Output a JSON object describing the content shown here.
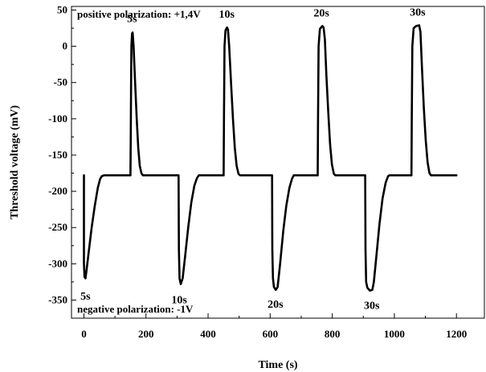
{
  "chart_data": {
    "type": "line",
    "xlabel": "Time (s)",
    "ylabel": "Threshold voltage (mV)",
    "xlim": [
      -40,
      1290
    ],
    "ylim": [
      -375,
      55
    ],
    "x_ticks": [
      0,
      200,
      400,
      600,
      800,
      1000,
      1200
    ],
    "y_ticks": [
      50,
      0,
      -50,
      -100,
      -150,
      -200,
      -250,
      -300,
      -350
    ],
    "grid": false,
    "line_color": "#000000",
    "annotations": {
      "positive": "positive polarization: +1,4V",
      "negative": "negative polarization: -1V"
    },
    "pulse_labels": [
      {
        "text": "5s",
        "x": 5,
        "y": -325,
        "position": "below"
      },
      {
        "text": "5s",
        "x": 155,
        "y": 20,
        "position": "above"
      },
      {
        "text": "10s",
        "x": 307,
        "y": -330,
        "position": "below"
      },
      {
        "text": "10s",
        "x": 460,
        "y": 26,
        "position": "above"
      },
      {
        "text": "20s",
        "x": 617,
        "y": -336,
        "position": "below"
      },
      {
        "text": "20s",
        "x": 765,
        "y": 28,
        "position": "above"
      },
      {
        "text": "30s",
        "x": 927,
        "y": -338,
        "position": "below"
      },
      {
        "text": "30s",
        "x": 1075,
        "y": 29,
        "position": "above"
      }
    ],
    "series": [
      {
        "points": [
          [
            0,
            -178
          ],
          [
            0,
            -300
          ],
          [
            2,
            -318
          ],
          [
            5,
            -320
          ],
          [
            8,
            -310
          ],
          [
            15,
            -285
          ],
          [
            25,
            -250
          ],
          [
            35,
            -220
          ],
          [
            45,
            -195
          ],
          [
            52,
            -183
          ],
          [
            58,
            -179
          ],
          [
            65,
            -178
          ],
          [
            150,
            -178
          ],
          [
            151,
            -120
          ],
          [
            152,
            -50
          ],
          [
            153,
            0
          ],
          [
            155,
            18
          ],
          [
            157,
            19
          ],
          [
            160,
            0
          ],
          [
            165,
            -50
          ],
          [
            170,
            -100
          ],
          [
            175,
            -140
          ],
          [
            180,
            -165
          ],
          [
            185,
            -175
          ],
          [
            190,
            -178
          ],
          [
            305,
            -178
          ],
          [
            306,
            -280
          ],
          [
            308,
            -320
          ],
          [
            312,
            -328
          ],
          [
            318,
            -320
          ],
          [
            326,
            -290
          ],
          [
            336,
            -250
          ],
          [
            346,
            -215
          ],
          [
            356,
            -192
          ],
          [
            364,
            -182
          ],
          [
            370,
            -178
          ],
          [
            450,
            -178
          ],
          [
            451,
            -100
          ],
          [
            453,
            0
          ],
          [
            456,
            22
          ],
          [
            461,
            26
          ],
          [
            464,
            23
          ],
          [
            468,
            0
          ],
          [
            474,
            -50
          ],
          [
            480,
            -100
          ],
          [
            486,
            -140
          ],
          [
            492,
            -165
          ],
          [
            498,
            -176
          ],
          [
            503,
            -178
          ],
          [
            606,
            -178
          ],
          [
            607,
            -280
          ],
          [
            609,
            -320
          ],
          [
            612,
            -332
          ],
          [
            618,
            -336
          ],
          [
            624,
            -332
          ],
          [
            632,
            -300
          ],
          [
            642,
            -255
          ],
          [
            652,
            -220
          ],
          [
            662,
            -195
          ],
          [
            670,
            -183
          ],
          [
            676,
            -178
          ],
          [
            753,
            -178
          ],
          [
            754,
            -100
          ],
          [
            756,
            0
          ],
          [
            760,
            24
          ],
          [
            768,
            28
          ],
          [
            772,
            26
          ],
          [
            776,
            10
          ],
          [
            781,
            -40
          ],
          [
            787,
            -90
          ],
          [
            793,
            -135
          ],
          [
            799,
            -163
          ],
          [
            805,
            -176
          ],
          [
            810,
            -178
          ],
          [
            906,
            -178
          ],
          [
            907,
            -280
          ],
          [
            909,
            -325
          ],
          [
            913,
            -333
          ],
          [
            921,
            -337
          ],
          [
            929,
            -336
          ],
          [
            934,
            -325
          ],
          [
            942,
            -290
          ],
          [
            952,
            -245
          ],
          [
            962,
            -210
          ],
          [
            972,
            -188
          ],
          [
            980,
            -179
          ],
          [
            984,
            -178
          ],
          [
            1055,
            -178
          ],
          [
            1056,
            -100
          ],
          [
            1058,
            0
          ],
          [
            1062,
            25
          ],
          [
            1070,
            28
          ],
          [
            1080,
            29
          ],
          [
            1084,
            20
          ],
          [
            1089,
            -30
          ],
          [
            1095,
            -85
          ],
          [
            1101,
            -130
          ],
          [
            1107,
            -160
          ],
          [
            1113,
            -175
          ],
          [
            1118,
            -178
          ],
          [
            1200,
            -178
          ]
        ]
      }
    ]
  }
}
